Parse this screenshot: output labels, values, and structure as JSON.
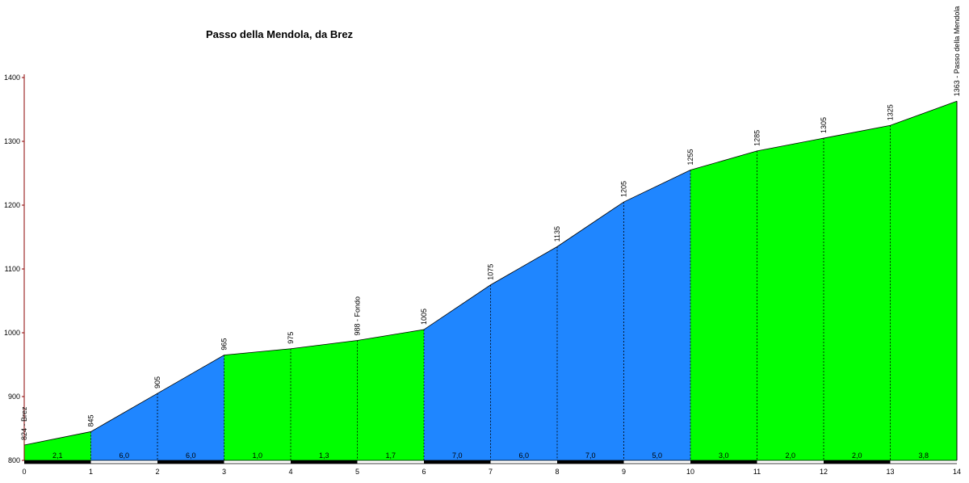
{
  "chart_data": {
    "type": "area",
    "title": "Passo della Mendola, da Brez",
    "xlabel": "",
    "ylabel": "",
    "xlim": [
      0,
      14
    ],
    "ylim": [
      800,
      1400
    ],
    "x_ticks": [
      "0",
      "1",
      "2",
      "3",
      "4",
      "5",
      "6",
      "7",
      "8",
      "9",
      "10",
      "11",
      "12",
      "13",
      "14"
    ],
    "y_ticks": [
      "800",
      "900",
      "1000",
      "1100",
      "1200",
      "1300",
      "1400"
    ],
    "grid": false,
    "colors": {
      "low_gradient": "#00ff00",
      "high_gradient": "#1f86ff"
    },
    "points": [
      {
        "x": 0,
        "y": 824,
        "label": "824 - Brez"
      },
      {
        "x": 1,
        "y": 845,
        "label": "845"
      },
      {
        "x": 2,
        "y": 905,
        "label": "905"
      },
      {
        "x": 3,
        "y": 965,
        "label": "965"
      },
      {
        "x": 4,
        "y": 975,
        "label": "975"
      },
      {
        "x": 5,
        "y": 988,
        "label": "988 - Fondo"
      },
      {
        "x": 6,
        "y": 1005,
        "label": "1005"
      },
      {
        "x": 7,
        "y": 1075,
        "label": "1075"
      },
      {
        "x": 8,
        "y": 1135,
        "label": "1135"
      },
      {
        "x": 9,
        "y": 1205,
        "label": "1205"
      },
      {
        "x": 10,
        "y": 1255,
        "label": "1255"
      },
      {
        "x": 11,
        "y": 1285,
        "label": "1285"
      },
      {
        "x": 12,
        "y": 1305,
        "label": "1305"
      },
      {
        "x": 13,
        "y": 1325,
        "label": "1325"
      },
      {
        "x": 14,
        "y": 1363,
        "label": "1363 - Passo della Mendola"
      }
    ],
    "segments": [
      {
        "from": 0,
        "to": 1,
        "gradient": "2,1",
        "color": "#00ff00"
      },
      {
        "from": 1,
        "to": 2,
        "gradient": "6,0",
        "color": "#1f86ff"
      },
      {
        "from": 2,
        "to": 3,
        "gradient": "6,0",
        "color": "#1f86ff"
      },
      {
        "from": 3,
        "to": 4,
        "gradient": "1,0",
        "color": "#00ff00"
      },
      {
        "from": 4,
        "to": 5,
        "gradient": "1,3",
        "color": "#00ff00"
      },
      {
        "from": 5,
        "to": 6,
        "gradient": "1,7",
        "color": "#00ff00"
      },
      {
        "from": 6,
        "to": 7,
        "gradient": "7,0",
        "color": "#1f86ff"
      },
      {
        "from": 7,
        "to": 8,
        "gradient": "6,0",
        "color": "#1f86ff"
      },
      {
        "from": 8,
        "to": 9,
        "gradient": "7,0",
        "color": "#1f86ff"
      },
      {
        "from": 9,
        "to": 10,
        "gradient": "5,0",
        "color": "#1f86ff"
      },
      {
        "from": 10,
        "to": 11,
        "gradient": "3,0",
        "color": "#00ff00"
      },
      {
        "from": 11,
        "to": 12,
        "gradient": "2,0",
        "color": "#00ff00"
      },
      {
        "from": 12,
        "to": 13,
        "gradient": "2,0",
        "color": "#00ff00"
      },
      {
        "from": 13,
        "to": 14,
        "gradient": "3,8",
        "color": "#00ff00"
      }
    ]
  }
}
